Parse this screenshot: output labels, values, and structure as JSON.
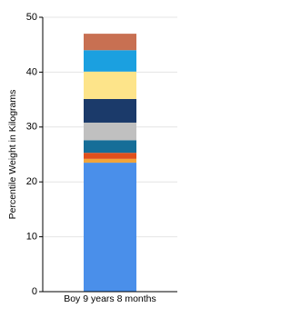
{
  "chart_data": {
    "type": "stacked_bar",
    "ylabel": "Percentile Weight in Kilograms",
    "categories": [
      "Boy 9 years 8 months"
    ],
    "series": [
      {
        "color": "#4a8fea",
        "values": [
          23.5
        ]
      },
      {
        "color": "#f2a43a",
        "values": [
          0.7
        ]
      },
      {
        "color": "#e0501c",
        "values": [
          1.1
        ]
      },
      {
        "color": "#166e98",
        "values": [
          2.3
        ]
      },
      {
        "color": "#c0c0c0",
        "values": [
          3.2
        ]
      },
      {
        "color": "#1b3a6a",
        "values": [
          4.3
        ]
      },
      {
        "color": "#fde48a",
        "values": [
          5.0
        ]
      },
      {
        "color": "#1ba0e0",
        "values": [
          3.9
        ]
      },
      {
        "color": "#c87052",
        "values": [
          3.0
        ]
      }
    ],
    "ylim": [
      0,
      50
    ],
    "yticks": [
      0,
      10,
      20,
      30,
      40,
      50
    ],
    "grid": true
  }
}
